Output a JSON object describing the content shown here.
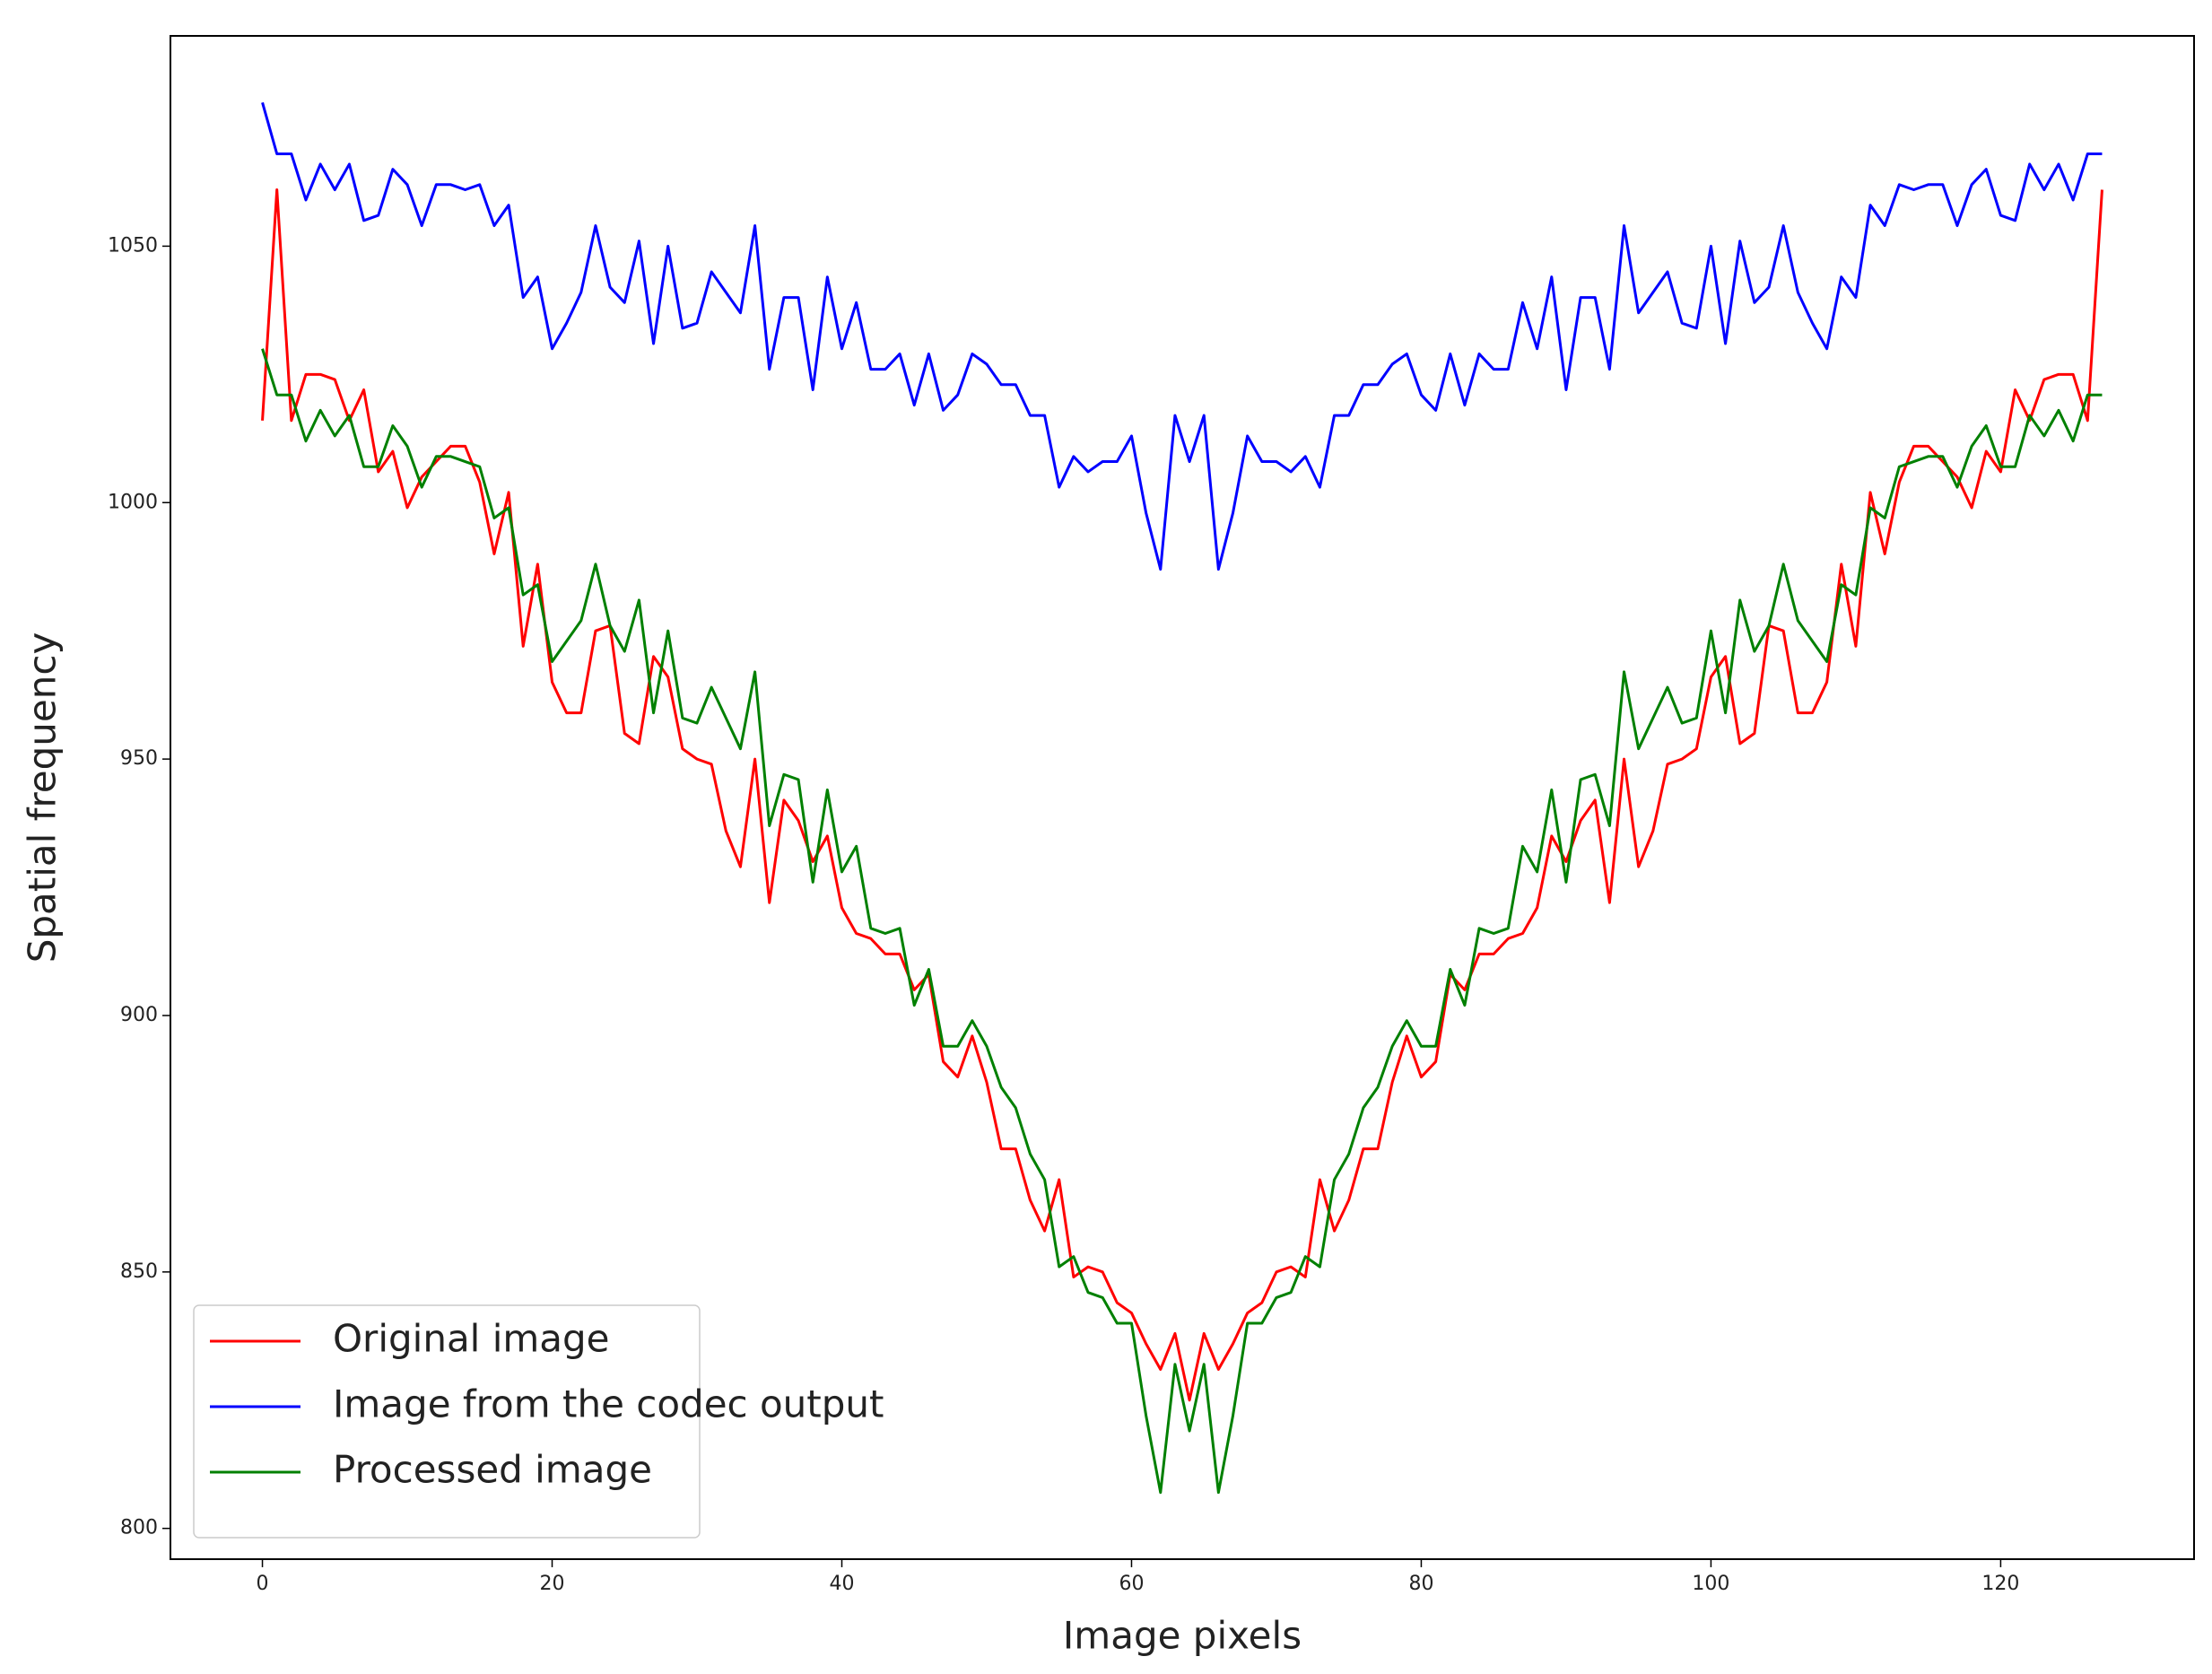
{
  "chart_data": {
    "type": "line",
    "x_label": "Image pixels",
    "y_label": "Spatial frequency",
    "x": [
      0,
      1,
      2,
      3,
      4,
      5,
      6,
      7,
      8,
      9,
      10,
      11,
      12,
      13,
      14,
      15,
      16,
      17,
      18,
      19,
      20,
      21,
      22,
      23,
      24,
      25,
      26,
      27,
      28,
      29,
      30,
      31,
      32,
      33,
      34,
      35,
      36,
      37,
      38,
      39,
      40,
      41,
      42,
      43,
      44,
      45,
      46,
      47,
      48,
      49,
      50,
      51,
      52,
      53,
      54,
      55,
      56,
      57,
      58,
      59,
      60,
      61,
      62,
      63,
      64,
      65,
      66,
      67,
      68,
      69,
      70,
      71,
      72,
      73,
      74,
      75,
      76,
      77,
      78,
      79,
      80,
      81,
      82,
      83,
      84,
      85,
      86,
      87,
      88,
      89,
      90,
      91,
      92,
      93,
      94,
      95,
      96,
      97,
      98,
      99,
      100,
      101,
      102,
      103,
      104,
      105,
      106,
      107,
      108,
      109,
      110,
      111,
      112,
      113,
      114,
      115,
      116,
      117,
      118,
      119,
      120,
      121,
      122,
      123,
      124,
      125,
      126,
      127
    ],
    "series": [
      {
        "name": "Original image",
        "color": "#ff0000",
        "values": [
          1016,
          1061,
          1016,
          1025,
          1025,
          1024,
          1016,
          1022,
          1006,
          1010,
          999,
          1005,
          1008,
          1011,
          1011,
          1004,
          990,
          1002,
          972,
          988,
          965,
          959,
          959,
          975,
          976,
          955,
          953,
          970,
          966,
          952,
          950,
          949,
          936,
          929,
          950,
          922,
          942,
          938,
          930,
          935,
          921,
          916,
          915,
          912,
          912,
          905,
          908,
          891,
          888,
          896,
          887,
          874,
          874,
          864,
          858,
          868,
          849,
          851,
          850,
          844,
          842,
          836,
          831,
          838,
          825,
          838,
          831,
          836,
          842,
          844,
          850,
          851,
          849,
          868,
          858,
          864,
          874,
          874,
          887,
          896,
          888,
          891,
          908,
          905,
          912,
          912,
          915,
          916,
          921,
          935,
          930,
          938,
          942,
          922,
          950,
          929,
          936,
          949,
          950,
          952,
          966,
          970,
          953,
          955,
          976,
          975,
          959,
          959,
          965,
          988,
          972,
          1002,
          990,
          1004,
          1011,
          1011,
          1008,
          1005,
          999,
          1010,
          1006,
          1022,
          1016,
          1024,
          1025,
          1025,
          1016,
          1061
        ]
      },
      {
        "name": "Image from the codec output",
        "color": "#0000ff",
        "values": [
          1078,
          1068,
          1068,
          1059,
          1066,
          1061,
          1066,
          1055,
          1056,
          1065,
          1062,
          1054,
          1062,
          1062,
          1061,
          1062,
          1054,
          1058,
          1040,
          1044,
          1030,
          1035,
          1041,
          1054,
          1042,
          1039,
          1051,
          1031,
          1050,
          1034,
          1035,
          1045,
          1041,
          1037,
          1054,
          1026,
          1040,
          1040,
          1022,
          1044,
          1030,
          1039,
          1026,
          1026,
          1029,
          1019,
          1029,
          1018,
          1021,
          1029,
          1027,
          1023,
          1023,
          1017,
          1017,
          1003,
          1009,
          1006,
          1008,
          1008,
          1013,
          998,
          987,
          1017,
          1008,
          1017,
          987,
          998,
          1013,
          1008,
          1008,
          1006,
          1009,
          1003,
          1017,
          1017,
          1023,
          1023,
          1027,
          1029,
          1021,
          1018,
          1029,
          1019,
          1029,
          1026,
          1026,
          1039,
          1030,
          1044,
          1022,
          1040,
          1040,
          1026,
          1054,
          1037,
          1041,
          1045,
          1035,
          1034,
          1050,
          1031,
          1051,
          1039,
          1042,
          1054,
          1041,
          1035,
          1030,
          1044,
          1040,
          1058,
          1054,
          1062,
          1061,
          1062,
          1062,
          1054,
          1062,
          1065,
          1056,
          1055,
          1066,
          1061,
          1066,
          1059,
          1068,
          1068
        ]
      },
      {
        "name": "Processed image",
        "color": "#008000",
        "values": [
          1030,
          1021,
          1021,
          1012,
          1018,
          1013,
          1017,
          1007,
          1007,
          1015,
          1011,
          1003,
          1009,
          1009,
          1008,
          1007,
          997,
          999,
          982,
          984,
          969,
          973,
          977,
          988,
          976,
          971,
          981,
          959,
          975,
          958,
          957,
          964,
          958,
          952,
          967,
          937,
          947,
          946,
          926,
          944,
          928,
          933,
          917,
          916,
          917,
          902,
          909,
          894,
          894,
          899,
          894,
          886,
          882,
          873,
          868,
          851,
          853,
          846,
          845,
          840,
          840,
          822,
          807,
          832,
          819,
          832,
          807,
          822,
          840,
          840,
          845,
          846,
          853,
          851,
          868,
          873,
          882,
          886,
          894,
          899,
          894,
          894,
          909,
          902,
          917,
          916,
          917,
          933,
          928,
          944,
          926,
          946,
          947,
          937,
          967,
          952,
          958,
          964,
          957,
          958,
          975,
          959,
          981,
          971,
          976,
          988,
          977,
          973,
          969,
          984,
          982,
          999,
          997,
          1007,
          1008,
          1009,
          1009,
          1003,
          1011,
          1015,
          1007,
          1007,
          1017,
          1013,
          1018,
          1012,
          1021,
          1021
        ]
      }
    ],
    "xlim": [
      -6.35,
      133.35
    ],
    "ylim": [
      794,
      1091
    ],
    "xticks": [
      0,
      20,
      40,
      60,
      80,
      100,
      120
    ],
    "yticks": [
      800,
      850,
      900,
      950,
      1000,
      1050
    ],
    "grid": false,
    "legend": "lower left"
  }
}
